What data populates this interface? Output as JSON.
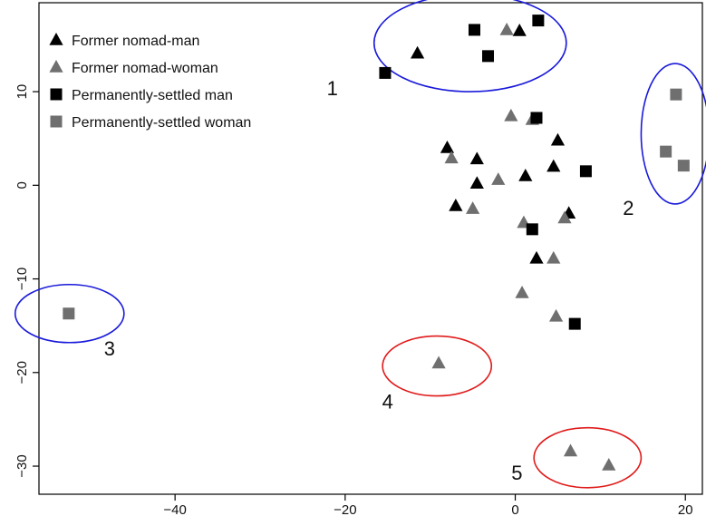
{
  "chart_data": {
    "type": "scatter",
    "title": "",
    "xlabel": "",
    "ylabel": "",
    "xlim": [
      -56,
      22
    ],
    "ylim": [
      -33,
      19.5
    ],
    "xticks": [
      -40,
      -20,
      0,
      20
    ],
    "yticks": [
      -30,
      -20,
      -10,
      0,
      10
    ],
    "grid": false,
    "legend_position": "top-left",
    "colors": {
      "black": "#000000",
      "gray": "#6f6f6f",
      "blue": "#1a1adb",
      "red": "#e01b1b"
    },
    "series": [
      {
        "name": "Former nomad-man",
        "marker": "triangle",
        "color": "#000000",
        "points": [
          [
            -11.5,
            14.1
          ],
          [
            0.5,
            16.5
          ],
          [
            -8,
            4
          ],
          [
            -4.5,
            2.8
          ],
          [
            -4.5,
            0.2
          ],
          [
            1.2,
            1
          ],
          [
            4.5,
            2
          ],
          [
            5,
            4.8
          ],
          [
            -7,
            -2.2
          ],
          [
            6.3,
            -3
          ],
          [
            2.5,
            -7.8
          ]
        ]
      },
      {
        "name": "Former nomad-woman",
        "marker": "triangle",
        "color": "#6f6f6f",
        "points": [
          [
            -1,
            16.6
          ],
          [
            -0.5,
            7.4
          ],
          [
            2,
            7
          ],
          [
            -7.5,
            2.9
          ],
          [
            -2,
            0.6
          ],
          [
            -5,
            -2.5
          ],
          [
            1,
            -4
          ],
          [
            5.8,
            -3.5
          ],
          [
            4.5,
            -7.8
          ],
          [
            0.8,
            -11.5
          ],
          [
            4.8,
            -14
          ],
          [
            -9,
            -19
          ],
          [
            6.5,
            -28.4
          ],
          [
            11,
            -29.9
          ]
        ]
      },
      {
        "name": "Permanently-settled man",
        "marker": "square",
        "color": "#000000",
        "points": [
          [
            -15.3,
            12
          ],
          [
            -4.8,
            16.6
          ],
          [
            2.7,
            17.6
          ],
          [
            -3.2,
            13.8
          ],
          [
            2.5,
            7.2
          ],
          [
            8.3,
            1.5
          ],
          [
            2,
            -4.7
          ],
          [
            7,
            -14.8
          ]
        ]
      },
      {
        "name": "Permanently-settled woman",
        "marker": "square",
        "color": "#6f6f6f",
        "points": [
          [
            18.9,
            9.7
          ],
          [
            17.7,
            3.6
          ],
          [
            19.8,
            2.1
          ],
          [
            -52.5,
            -13.7
          ]
        ]
      }
    ],
    "groups": [
      {
        "label": "1",
        "color": "#1a1adb",
        "cx": -5.3,
        "cy": 15.2,
        "rx": 11.3,
        "ry": 5.2,
        "label_at": [
          -21.5,
          10.2
        ]
      },
      {
        "label": "2",
        "color": "#1a1adb",
        "cx": 18.8,
        "cy": 5.5,
        "rx": 4,
        "ry": 7.5,
        "label_at": [
          13.3,
          -2.6
        ]
      },
      {
        "label": "3",
        "color": "#1a1adb",
        "cx": -52.4,
        "cy": -13.7,
        "rx": 6.4,
        "ry": 3.1,
        "label_at": [
          -47.7,
          -17.6
        ]
      },
      {
        "label": "4",
        "color": "#e01b1b",
        "cx": -9.2,
        "cy": -19.3,
        "rx": 6.4,
        "ry": 3.2,
        "label_at": [
          -15,
          -23.3
        ]
      },
      {
        "label": "5",
        "color": "#e01b1b",
        "cx": 8.5,
        "cy": -29.1,
        "rx": 6.3,
        "ry": 3.2,
        "label_at": [
          0.2,
          -30.9
        ]
      }
    ]
  }
}
